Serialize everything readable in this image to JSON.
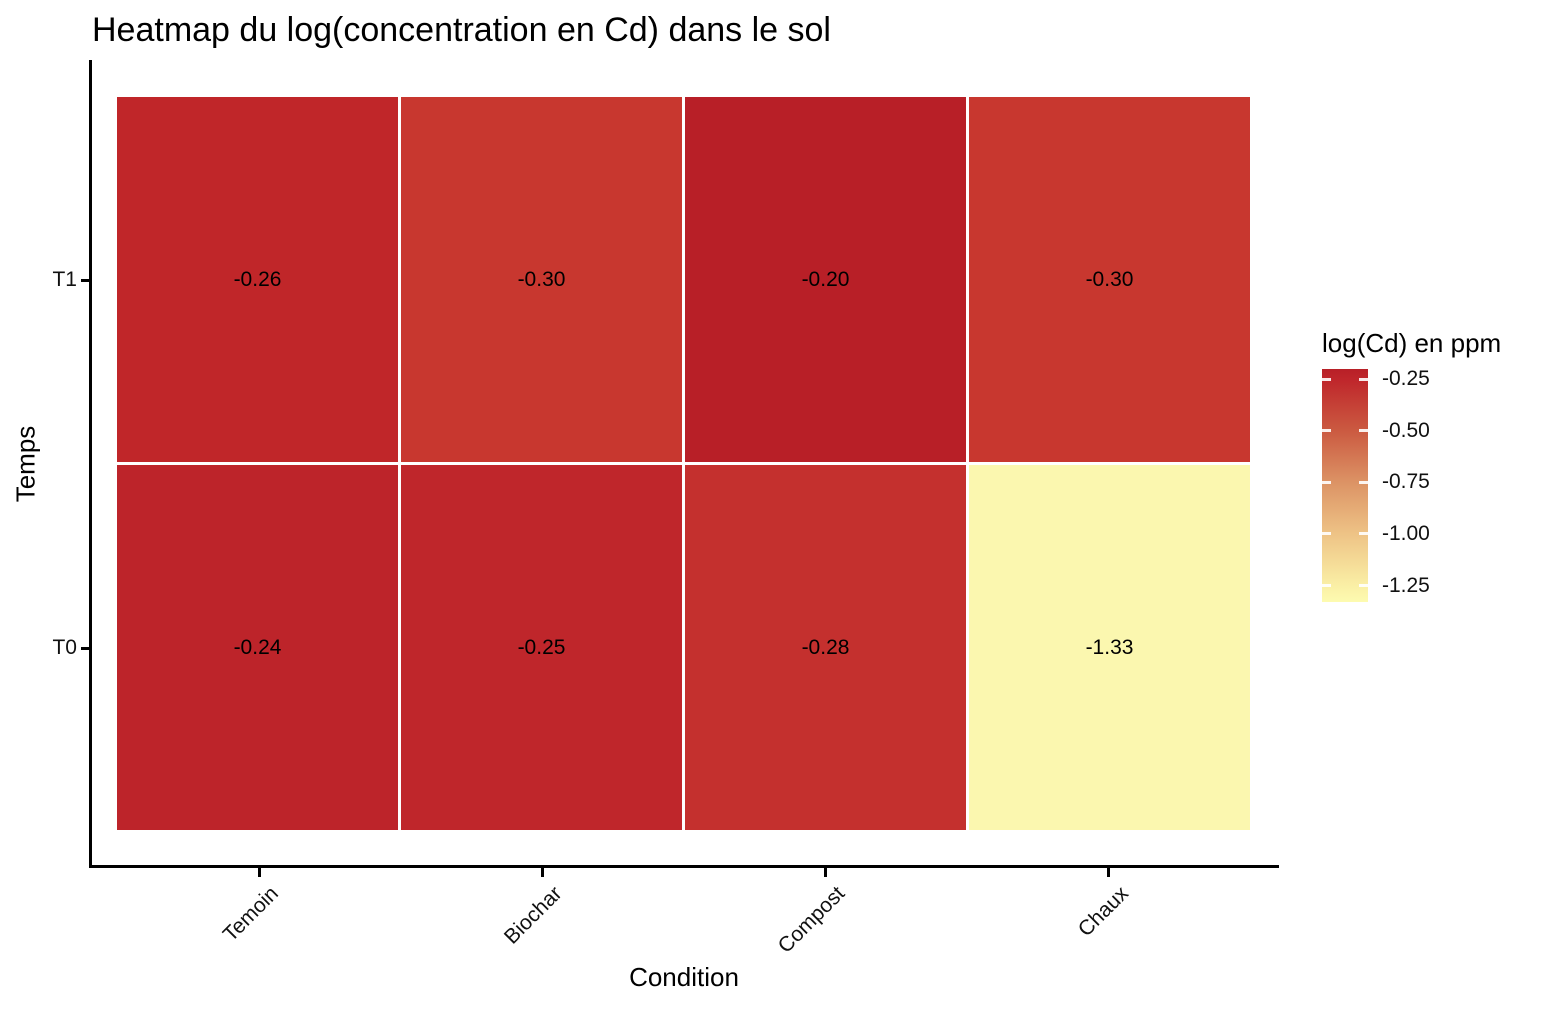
{
  "title": "Heatmap du log(concentration en Cd) dans le sol",
  "chart_data": {
    "type": "heatmap",
    "title": "Heatmap du log(concentration en Cd) dans le sol",
    "xlabel": "Condition",
    "ylabel": "Temps",
    "x_categories": [
      "Temoin",
      "Biochar",
      "Compost",
      "Chaux"
    ],
    "y_categories_top_to_bottom": [
      "T1",
      "T0"
    ],
    "series": [
      {
        "y": "T1",
        "values": [
          -0.26,
          -0.3,
          -0.2,
          -0.3
        ],
        "labels": [
          "-0.26",
          "-0.30",
          "-0.20",
          "-0.30"
        ],
        "colors": [
          "#C02629",
          "#C8372F",
          "#B81F27",
          "#C8372F"
        ]
      },
      {
        "y": "T0",
        "values": [
          -0.24,
          -0.25,
          -0.28,
          -1.33
        ],
        "labels": [
          "-0.24",
          "-0.25",
          "-0.28",
          "-1.33"
        ],
        "colors": [
          "#BD242A",
          "#BF262B",
          "#C4302E",
          "#FBF7AF"
        ]
      }
    ],
    "legend": {
      "title": "log(Cd) en ppm",
      "domain_max": -0.2,
      "domain_min": -1.33,
      "ticks": [
        {
          "value": -0.25,
          "label": "-0.25"
        },
        {
          "value": -0.5,
          "label": "-0.50"
        },
        {
          "value": -0.75,
          "label": "-0.75"
        },
        {
          "value": -1.0,
          "label": "-1.00"
        },
        {
          "value": -1.25,
          "label": "-1.25"
        }
      ],
      "gradient_stops": [
        {
          "pct": 0,
          "color": "#B81F27"
        },
        {
          "pct": 4.4,
          "color": "#BF262B"
        },
        {
          "pct": 26.5,
          "color": "#CB5A41"
        },
        {
          "pct": 48.7,
          "color": "#DC9365"
        },
        {
          "pct": 70.8,
          "color": "#EEC386"
        },
        {
          "pct": 92.9,
          "color": "#FAEFA5"
        },
        {
          "pct": 100,
          "color": "#FDFBB0"
        }
      ]
    },
    "layout_hints": {
      "grid": "off",
      "legend_position": "right",
      "cell_borders": "white"
    }
  }
}
